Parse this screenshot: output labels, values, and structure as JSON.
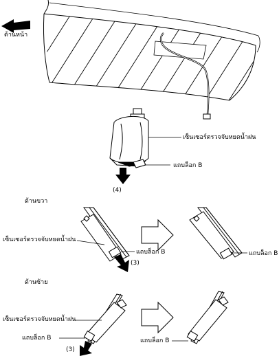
{
  "labels": {
    "front": "ด้านหน้า",
    "sensor_top": "เซ็นเซอร์ตรวจจับหยดน้ำฝน",
    "tab_b_top": "แถบล็อก B",
    "step_4": "(4)",
    "right_side": "ด้านขวา",
    "sensor_right": "เซ็นเซอร์ตรวจจับหยดน้ำฝน",
    "tab_b_right_1": "แถบล็อก B",
    "step_3_right": "(3)",
    "tab_b_right_2": "แถบล็อก B",
    "left_side": "ด้านซ้าย",
    "sensor_left": "เซ็นเซอร์ตรวจจับหยดน้ำฝน",
    "tab_b_left_1": "แถบล็อก B",
    "step_3_left": "(3)",
    "tab_b_left_2": "แถบล็อก B"
  }
}
